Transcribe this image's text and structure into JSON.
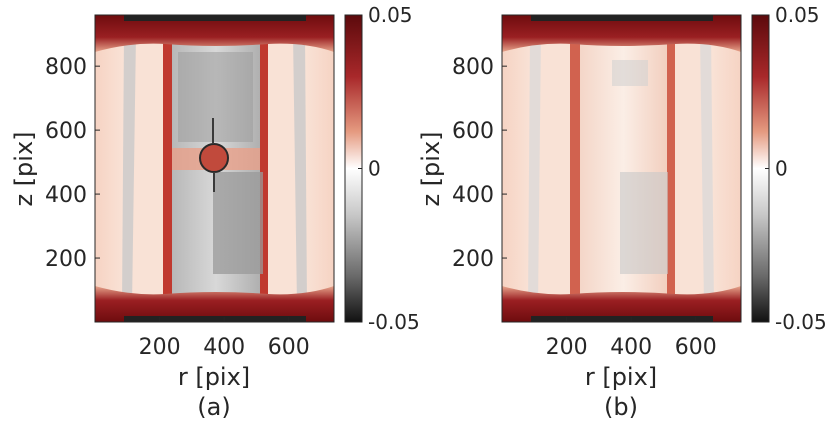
{
  "chart_data": [
    {
      "type": "heatmap",
      "panel_label": "(a)",
      "xlabel": "r [pix]",
      "ylabel": "z [pix]",
      "x_ticks": [
        200,
        400,
        600
      ],
      "y_ticks": [
        200,
        400,
        600,
        800
      ],
      "xlim": [
        0,
        740
      ],
      "ylim": [
        0,
        960
      ],
      "colorbar": {
        "min": -0.05,
        "max": 0.05,
        "tick_labels": [
          "0.05",
          "0",
          "-0.05"
        ],
        "colormap": "black-gray-white-red-darkred"
      },
      "features": {
        "circular_hole": true,
        "hole_center": [
          370,
          510
        ],
        "hole_radius": 48
      }
    },
    {
      "type": "heatmap",
      "panel_label": "(b)",
      "xlabel": "r [pix]",
      "ylabel": "z [pix]",
      "x_ticks": [
        200,
        400,
        600
      ],
      "y_ticks": [
        200,
        400,
        600,
        800
      ],
      "xlim": [
        0,
        740
      ],
      "ylim": [
        0,
        960
      ],
      "colorbar": {
        "min": -0.05,
        "max": 0.05,
        "tick_labels": [
          "0.05",
          "0",
          "-0.05"
        ],
        "colormap": "black-gray-white-red-darkred"
      },
      "features": {
        "circular_hole": false
      }
    }
  ],
  "colors": {
    "dark_red": "#7a0d10",
    "red": "#c43a35",
    "pink": "#f3c2ae",
    "light": "#fbeee6",
    "white": "#ffffff",
    "gray": "#9a9a9a",
    "black": "#1a1a1a"
  }
}
